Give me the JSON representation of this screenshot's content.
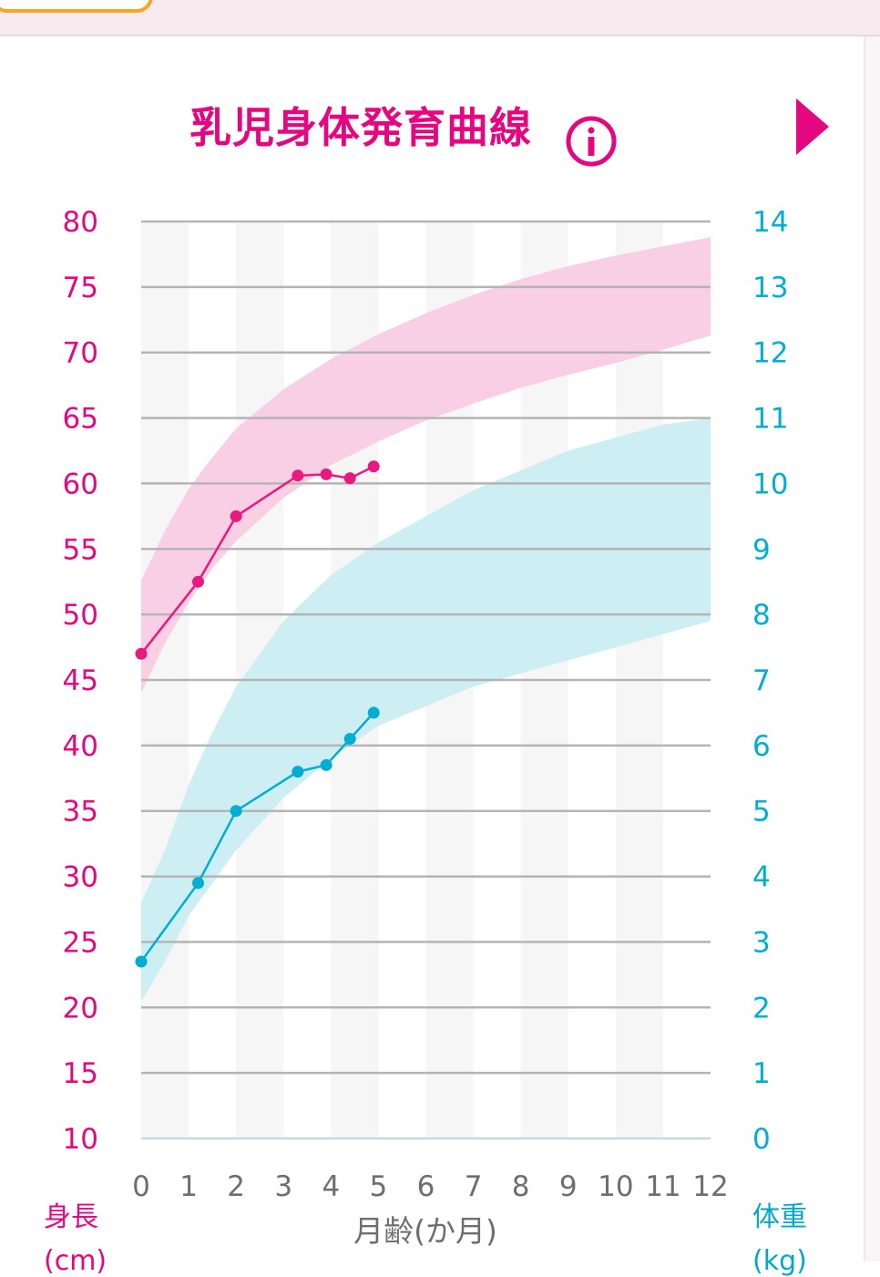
{
  "title": "乳児身体発育曲線",
  "icons": {
    "info": "info-circle-icon",
    "next": "triangle-right-icon"
  },
  "colors": {
    "accent": "#e4077f",
    "height": "#e8197f",
    "weight": "#00aed3",
    "height_band": "#f9cfe5",
    "weight_band": "#cdeef3",
    "tab_border": "#f5a623"
  },
  "units": {
    "height_label": "身長",
    "height_unit": "(cm)",
    "weight_label": "体重",
    "weight_unit": "(kg)"
  },
  "chart_data": {
    "type": "line",
    "xlabel": "月齢(か月)",
    "x_ticks": [
      "0",
      "1",
      "2",
      "3",
      "4",
      "5",
      "6",
      "7",
      "8",
      "9",
      "10",
      "11",
      "12"
    ],
    "xlim": [
      0,
      12
    ],
    "grid": true,
    "y_left": {
      "label": "身長(cm)",
      "ticks": [
        "10",
        "15",
        "20",
        "25",
        "30",
        "35",
        "40",
        "45",
        "50",
        "55",
        "60",
        "65",
        "70",
        "75",
        "80"
      ],
      "lim": [
        10,
        80
      ]
    },
    "y_right": {
      "label": "体重(kg)",
      "ticks": [
        "0",
        "1",
        "2",
        "3",
        "4",
        "5",
        "6",
        "7",
        "8",
        "9",
        "10",
        "11",
        "12",
        "13",
        "14"
      ],
      "lim": [
        0,
        14
      ]
    },
    "bands": [
      {
        "axis": "left",
        "x": [
          0,
          0.5,
          1,
          1.5,
          2,
          3,
          4,
          5,
          6,
          7,
          8,
          9,
          10,
          11,
          12
        ],
        "lower": [
          44.0,
          47.8,
          50.9,
          53.5,
          55.6,
          58.9,
          61.4,
          63.2,
          64.8,
          66.1,
          67.3,
          68.3,
          69.2,
          70.2,
          71.3
        ],
        "upper": [
          52.6,
          56.4,
          59.6,
          62.0,
          64.2,
          67.2,
          69.5,
          71.4,
          73.0,
          74.4,
          75.6,
          76.6,
          77.4,
          78.1,
          78.8
        ]
      },
      {
        "axis": "right",
        "x": [
          0,
          0.5,
          1,
          1.5,
          2,
          3,
          4,
          5,
          6,
          7,
          8,
          9,
          10,
          11,
          12
        ],
        "lower": [
          2.1,
          2.7,
          3.4,
          3.9,
          4.4,
          5.2,
          5.8,
          6.3,
          6.6,
          6.9,
          7.1,
          7.3,
          7.5,
          7.7,
          7.9
        ],
        "upper": [
          3.6,
          4.4,
          5.4,
          6.2,
          6.9,
          7.9,
          8.6,
          9.1,
          9.5,
          9.9,
          10.2,
          10.5,
          10.7,
          10.9,
          11.0
        ]
      }
    ],
    "series": [
      {
        "axis": "left",
        "x": [
          0,
          1.2,
          2.0,
          3.3,
          3.9,
          4.4,
          4.9
        ],
        "values": [
          47.0,
          52.5,
          57.5,
          60.6,
          60.7,
          60.4,
          61.3
        ]
      },
      {
        "axis": "right",
        "x": [
          0,
          1.2,
          2.0,
          3.3,
          3.9,
          4.4,
          4.9
        ],
        "values": [
          2.7,
          3.9,
          5.0,
          5.6,
          5.7,
          6.1,
          6.5
        ]
      }
    ]
  }
}
